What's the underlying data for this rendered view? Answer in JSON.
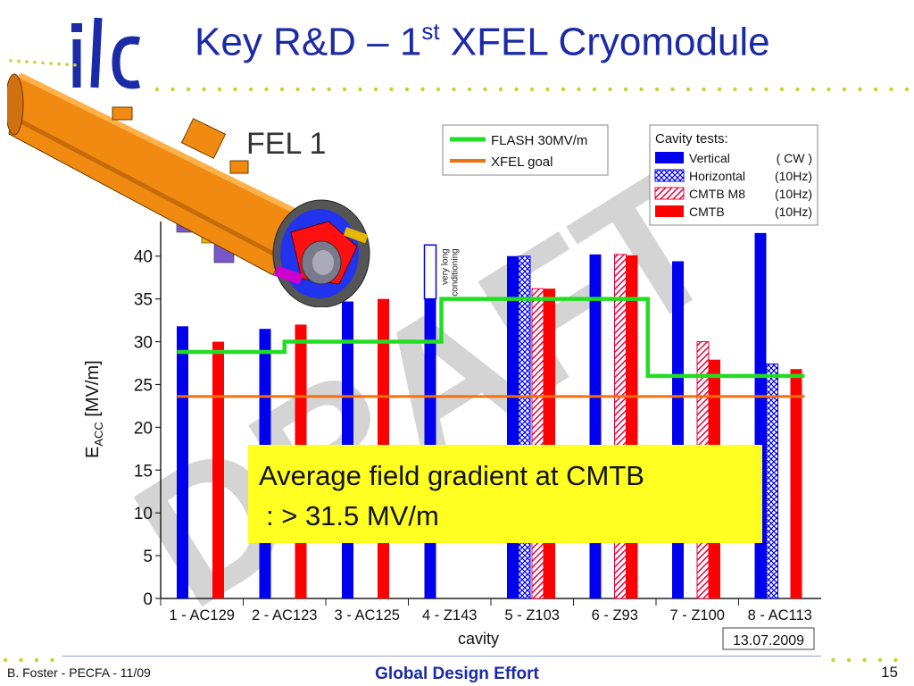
{
  "slide": {
    "title_prefix": "Key R&D – 1",
    "title_sup": "st",
    "title_suffix": " XFEL Cryomodule",
    "logo_text": "ilc",
    "footer_left": "B. Foster - PECFA - 11/09",
    "footer_center": "Global Design Effort",
    "page_number": "15",
    "accent_color": "#1b2aa6",
    "dot_color": "#c6d42a"
  },
  "chart_data": {
    "type": "bar",
    "title": "FEL 1",
    "xlabel": "cavity",
    "ylabel_main": "E",
    "ylabel_sub": "ACC",
    "ylabel_unit": " [MV/m]",
    "ylim": [
      0,
      43
    ],
    "yticks": [
      0,
      5,
      10,
      15,
      20,
      25,
      30,
      35,
      40
    ],
    "categories": [
      "1 - AC129",
      "2 - AC123",
      "3 - AC125",
      "4 - Z143",
      "5 - Z103",
      "6 - Z93",
      "7 - Z100",
      "8 - AC113"
    ],
    "series": [
      {
        "name": "Vertical",
        "unit": "( CW )",
        "color": "#0000ee",
        "pattern": "solid",
        "values": [
          31.8,
          31.5,
          34.7,
          35,
          40,
          40.2,
          39.4,
          42.7
        ]
      },
      {
        "name": "Horizontal",
        "unit": "(10Hz)",
        "color": "#0000ee",
        "pattern": "hatch",
        "values": [
          null,
          null,
          null,
          null,
          40,
          null,
          null,
          27.4
        ]
      },
      {
        "name": "CMTB M8",
        "unit": "(10Hz)",
        "color": "#e8003a",
        "pattern": "hatch",
        "values": [
          null,
          null,
          null,
          null,
          36.2,
          40.2,
          30,
          null
        ]
      },
      {
        "name": "CMTB",
        "unit": "(10Hz)",
        "color": "#ff0000",
        "pattern": "solid",
        "values": [
          30,
          32,
          35,
          null,
          36.2,
          40.1,
          27.9,
          26.8
        ]
      }
    ],
    "extra_bars": [
      {
        "category_index": 3,
        "from": 35,
        "to": 41.3,
        "label": "very long conditioning"
      }
    ],
    "flash_line": {
      "name": "FLASH 30MV/m",
      "color": "#22dd22",
      "steps": [
        {
          "x_from": 0.7,
          "x_to": 2.0,
          "y": 28.8
        },
        {
          "x_from": 2.0,
          "x_to": 3.9,
          "y": 30
        },
        {
          "x_from": 3.9,
          "x_to": 6.4,
          "y": 35
        },
        {
          "x_from": 6.4,
          "x_to": 8.3,
          "y": 26
        }
      ]
    },
    "xfel_goal": {
      "name": "XFEL goal",
      "color": "#f07010",
      "y": 23.6,
      "x_from": 0.7,
      "x_to": 8.3
    },
    "legend_lines_title": "",
    "legend_cavity_title": "Cavity tests:",
    "annotation": {
      "line1": "Average field gradient at CMTB",
      "line2": ": > 31.5 MV/m",
      "background": "#ffff22"
    },
    "watermark": "DRAFT",
    "date_stamp": "13.07.2009",
    "legend_placement": "top-right",
    "grid": false
  }
}
